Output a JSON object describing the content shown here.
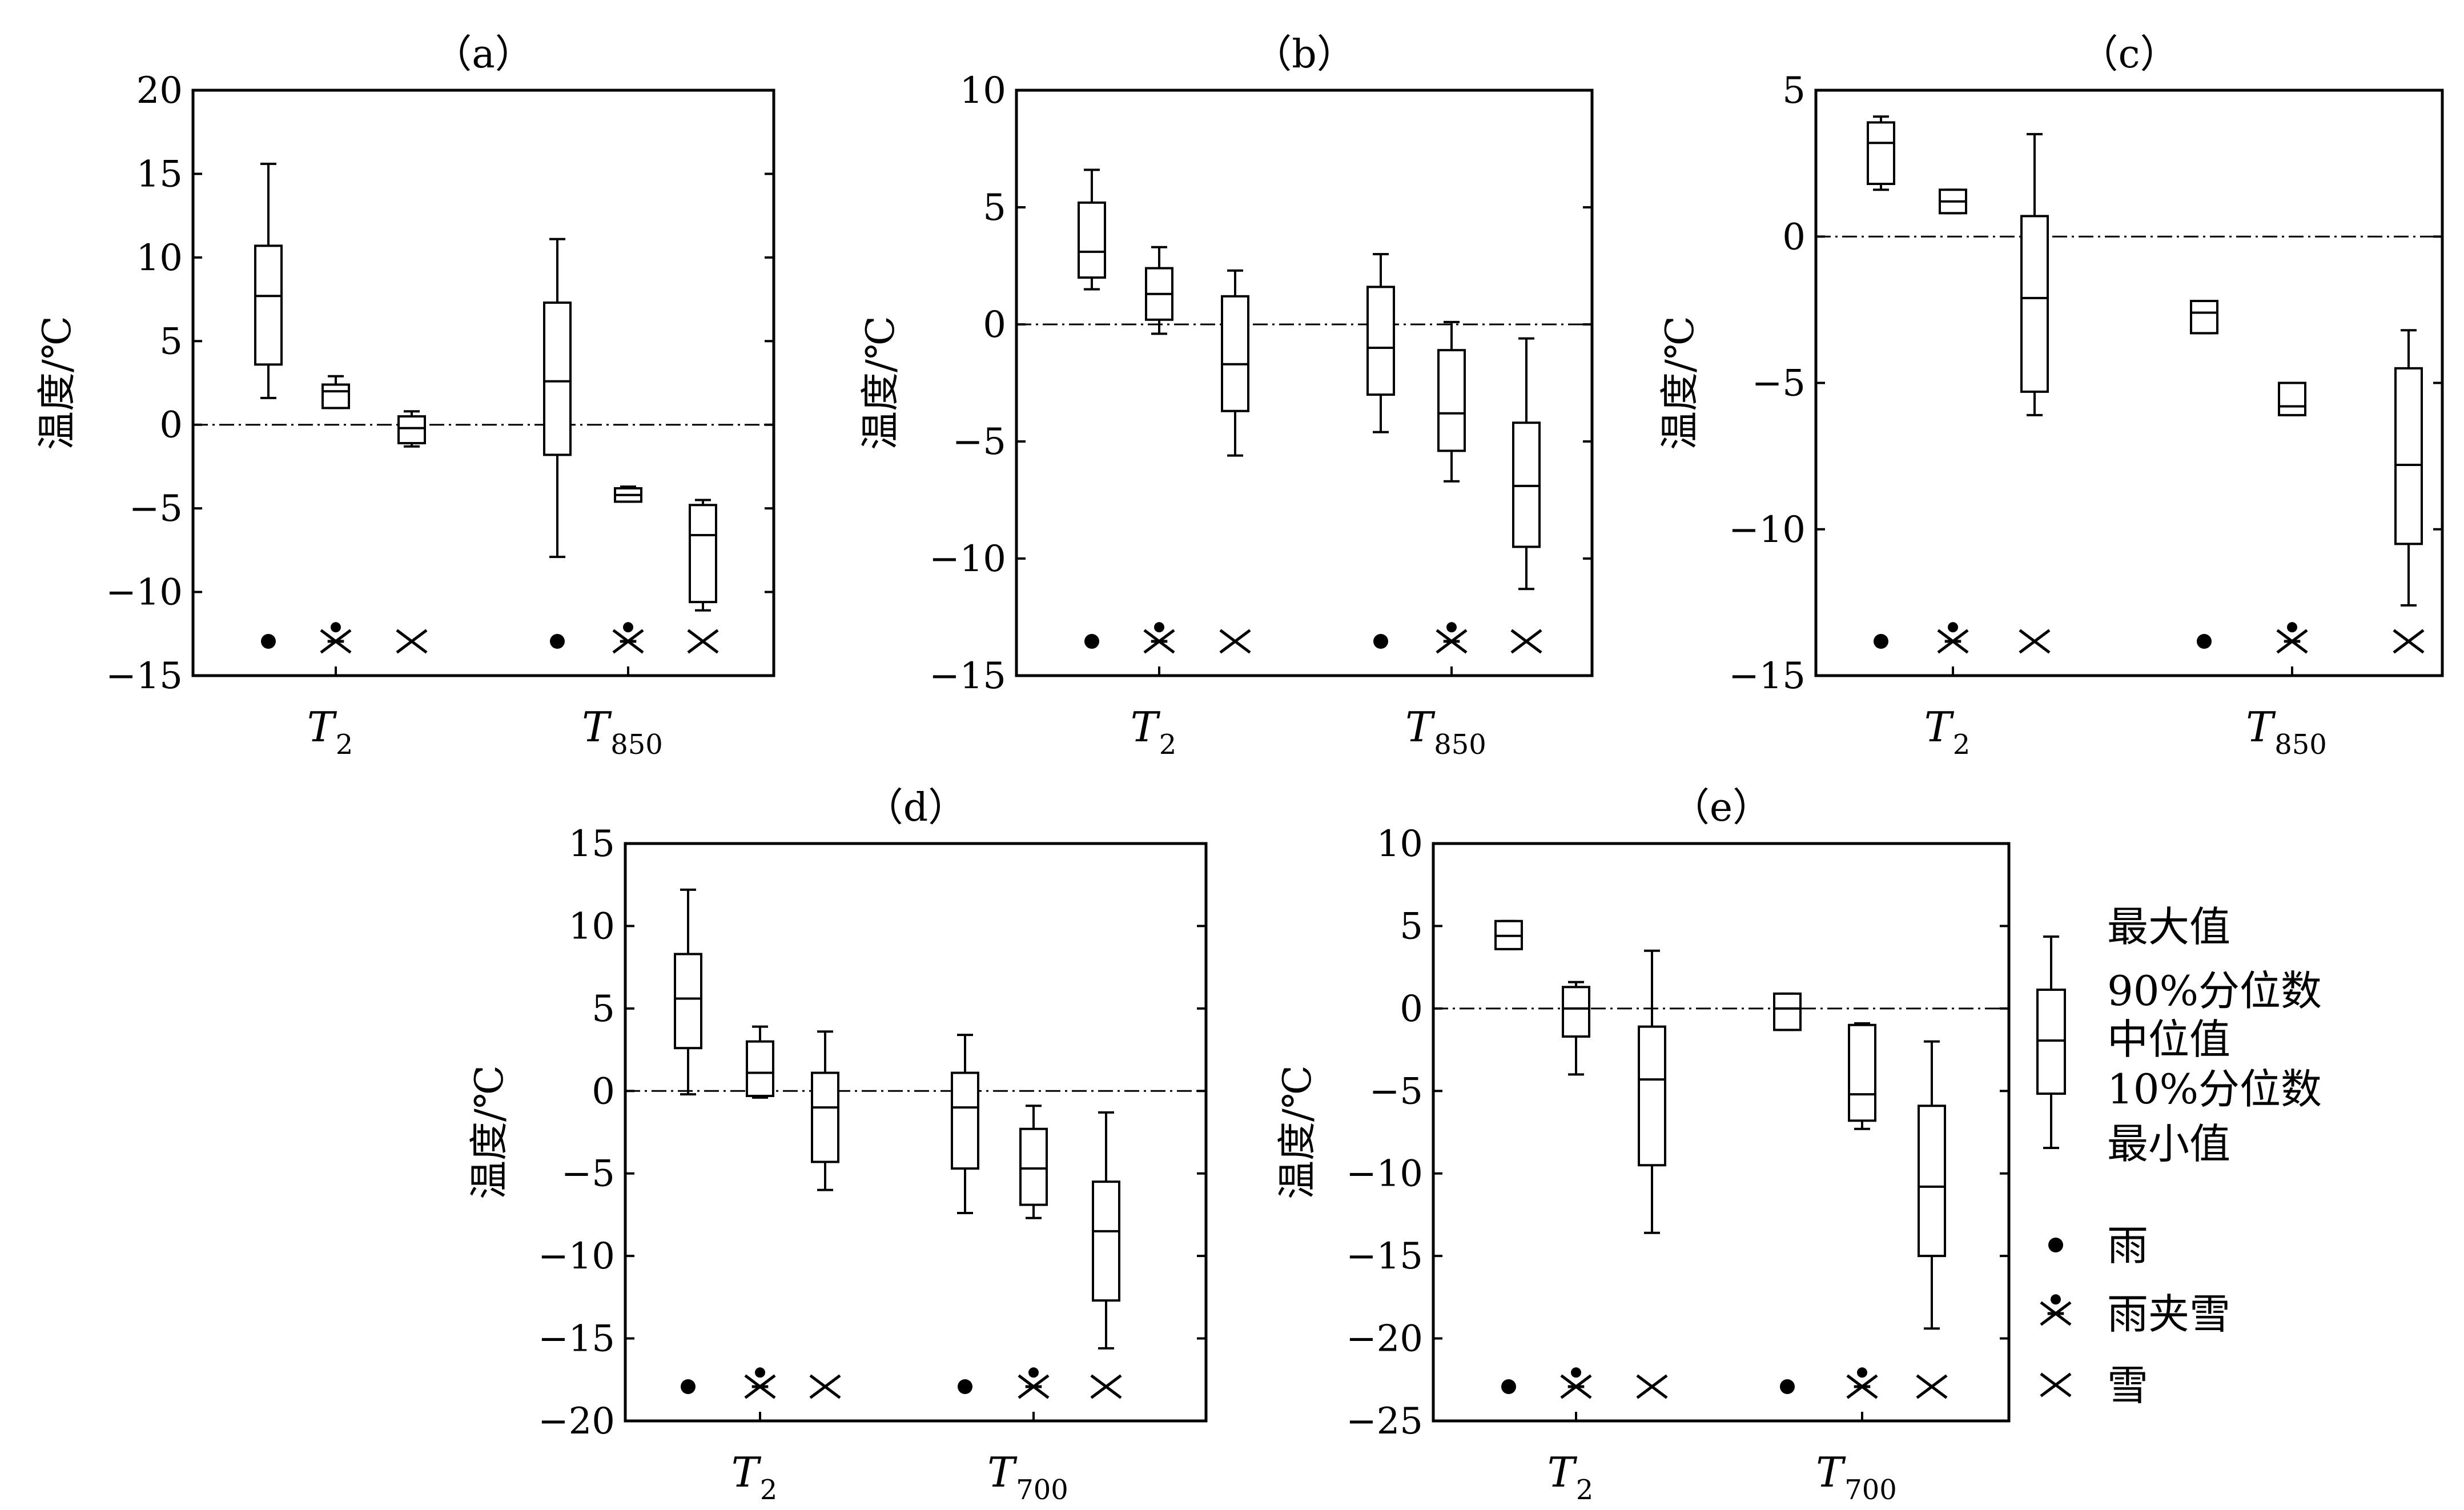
{
  "chart_data": [
    {
      "type": "box",
      "title": "（a）",
      "ylabel": "温度/℃",
      "ylim": [
        -15,
        20
      ],
      "yticks": [
        -15,
        -10,
        -5,
        0,
        5,
        10,
        15,
        20
      ],
      "groups": [
        {
          "main": "T",
          "sub": "2"
        },
        {
          "main": "T",
          "sub": "850"
        }
      ],
      "boxes": [
        {
          "group": 0,
          "type": "rain",
          "min": 1.6,
          "p10": 3.6,
          "median": 7.7,
          "p90": 10.7,
          "max": 15.6
        },
        {
          "group": 0,
          "type": "sleet",
          "min": 1.0,
          "p10": 1.0,
          "median": 2.0,
          "p90": 2.4,
          "max": 2.9
        },
        {
          "group": 0,
          "type": "snow",
          "min": -1.3,
          "p10": -1.1,
          "median": -0.2,
          "p90": 0.5,
          "max": 0.8
        },
        {
          "group": 1,
          "type": "rain",
          "min": -7.9,
          "p10": -1.8,
          "median": 2.6,
          "p90": 7.3,
          "max": 11.1
        },
        {
          "group": 1,
          "type": "sleet",
          "min": -4.6,
          "p10": -4.6,
          "median": -4.2,
          "p90": -3.8,
          "max": -3.7
        },
        {
          "group": 1,
          "type": "snow",
          "min": -11.1,
          "p10": -10.6,
          "median": -6.6,
          "p90": -4.8,
          "max": -4.5
        }
      ]
    },
    {
      "type": "box",
      "title": "（b）",
      "ylabel": "温度/℃",
      "ylim": [
        -15,
        10
      ],
      "yticks": [
        -15,
        -10,
        -5,
        0,
        5,
        10
      ],
      "groups": [
        {
          "main": "T",
          "sub": "2"
        },
        {
          "main": "T",
          "sub": "850"
        }
      ],
      "boxes": [
        {
          "group": 0,
          "type": "rain",
          "min": 1.5,
          "p10": 2.0,
          "median": 3.1,
          "p90": 5.2,
          "max": 6.6
        },
        {
          "group": 0,
          "type": "sleet",
          "min": -0.4,
          "p10": 0.2,
          "median": 1.3,
          "p90": 2.4,
          "max": 3.3
        },
        {
          "group": 0,
          "type": "snow",
          "min": -5.6,
          "p10": -3.7,
          "median": -1.7,
          "p90": 1.2,
          "max": 2.3
        },
        {
          "group": 1,
          "type": "rain",
          "min": -4.6,
          "p10": -3.0,
          "median": -1.0,
          "p90": 1.6,
          "max": 3.0
        },
        {
          "group": 1,
          "type": "sleet",
          "min": -6.7,
          "p10": -5.4,
          "median": -3.8,
          "p90": -1.1,
          "max": 0.1
        },
        {
          "group": 1,
          "type": "snow",
          "min": -11.3,
          "p10": -9.5,
          "median": -6.9,
          "p90": -4.2,
          "max": -0.6
        }
      ]
    },
    {
      "type": "box",
      "title": "（c）",
      "ylabel": "温度/℃",
      "ylim": [
        -15,
        5
      ],
      "yticks": [
        -15,
        -10,
        -5,
        0,
        5
      ],
      "groups": [
        {
          "main": "T",
          "sub": "2"
        },
        {
          "main": "T",
          "sub": "850"
        }
      ],
      "boxes": [
        {
          "group": 0,
          "type": "rain",
          "min": 1.6,
          "p10": 1.8,
          "median": 3.2,
          "p90": 3.9,
          "max": 4.1
        },
        {
          "group": 0,
          "type": "sleet",
          "min": 0.8,
          "p10": 0.8,
          "median": 1.2,
          "p90": 1.6,
          "max": 1.6
        },
        {
          "group": 0,
          "type": "snow",
          "min": -6.1,
          "p10": -5.3,
          "median": -2.1,
          "p90": 0.7,
          "max": 3.5
        },
        {
          "group": 1,
          "type": "rain",
          "min": -3.3,
          "p10": -3.3,
          "median": -2.6,
          "p90": -2.2,
          "max": -2.2
        },
        {
          "group": 1,
          "type": "sleet",
          "min": -6.1,
          "p10": -6.1,
          "median": -5.8,
          "p90": -5.0,
          "max": -5.0
        },
        {
          "group": 1,
          "type": "snow",
          "min": -12.6,
          "p10": -10.5,
          "median": -7.8,
          "p90": -4.5,
          "max": -3.2
        }
      ]
    },
    {
      "type": "box",
      "title": "（d）",
      "ylabel": "温度/℃",
      "ylim": [
        -20,
        15
      ],
      "yticks": [
        -20,
        -15,
        -10,
        -5,
        0,
        5,
        10,
        15
      ],
      "groups": [
        {
          "main": "T",
          "sub": "2"
        },
        {
          "main": "T",
          "sub": "700"
        }
      ],
      "boxes": [
        {
          "group": 0,
          "type": "rain",
          "min": -0.2,
          "p10": 2.6,
          "median": 5.6,
          "p90": 8.3,
          "max": 12.2
        },
        {
          "group": 0,
          "type": "sleet",
          "min": -0.4,
          "p10": -0.3,
          "median": 1.1,
          "p90": 3.0,
          "max": 3.9
        },
        {
          "group": 0,
          "type": "snow",
          "min": -6.0,
          "p10": -4.3,
          "median": -1.0,
          "p90": 1.1,
          "max": 3.6
        },
        {
          "group": 1,
          "type": "rain",
          "min": -7.4,
          "p10": -4.7,
          "median": -1.0,
          "p90": 1.1,
          "max": 3.4
        },
        {
          "group": 1,
          "type": "sleet",
          "min": -7.7,
          "p10": -6.9,
          "median": -4.7,
          "p90": -2.3,
          "max": -0.9
        },
        {
          "group": 1,
          "type": "snow",
          "min": -15.6,
          "p10": -12.7,
          "median": -8.5,
          "p90": -5.5,
          "max": -1.3
        }
      ]
    },
    {
      "type": "box",
      "title": "（e）",
      "ylabel": "温度/℃",
      "ylim": [
        -25,
        10
      ],
      "yticks": [
        -25,
        -20,
        -15,
        -10,
        -5,
        0,
        5,
        10
      ],
      "groups": [
        {
          "main": "T",
          "sub": "2"
        },
        {
          "main": "T",
          "sub": "700"
        }
      ],
      "boxes": [
        {
          "group": 0,
          "type": "rain",
          "min": 3.6,
          "p10": 3.6,
          "median": 4.4,
          "p90": 5.3,
          "max": 5.3
        },
        {
          "group": 0,
          "type": "sleet",
          "min": -4.0,
          "p10": -1.7,
          "median": 0.0,
          "p90": 1.3,
          "max": 1.6
        },
        {
          "group": 0,
          "type": "snow",
          "min": -13.6,
          "p10": -9.5,
          "median": -4.3,
          "p90": -1.1,
          "max": 3.5
        },
        {
          "group": 1,
          "type": "rain",
          "min": -1.3,
          "p10": -1.3,
          "median": 0.0,
          "p90": 0.9,
          "max": 0.9
        },
        {
          "group": 1,
          "type": "sleet",
          "min": -7.3,
          "p10": -6.8,
          "median": -5.2,
          "p90": -1.0,
          "max": -0.9
        },
        {
          "group": 1,
          "type": "snow",
          "min": -19.4,
          "p10": -15.0,
          "median": -10.8,
          "p90": -5.9,
          "max": -2.0
        }
      ]
    }
  ],
  "legend": {
    "box_labels": [
      "最大值",
      "90%分位数",
      "中位值",
      "10%分位数",
      "最小值"
    ],
    "symbols": [
      {
        "type": "rain",
        "label": "雨"
      },
      {
        "type": "sleet",
        "label": "雨夹雪"
      },
      {
        "type": "snow",
        "label": "雪"
      }
    ]
  }
}
